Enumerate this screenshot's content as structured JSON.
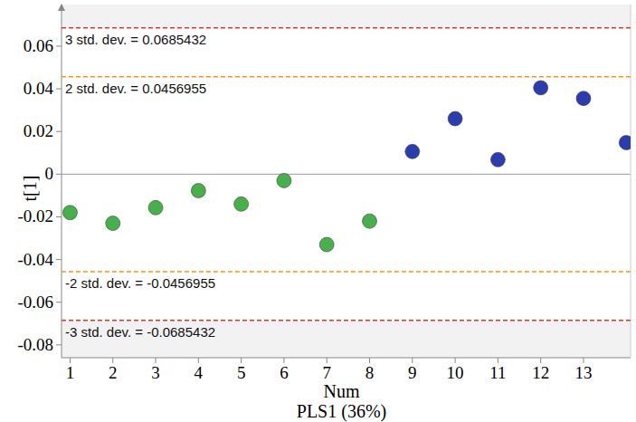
{
  "chart_data": {
    "type": "scatter",
    "subtitle": "PLS1 (36%)",
    "x_label": "Num",
    "y_label": "t[1]",
    "x": [
      1,
      2,
      3,
      4,
      5,
      6,
      7,
      8,
      9,
      10,
      11,
      12,
      13,
      14
    ],
    "values": [
      -0.018,
      -0.023,
      -0.0157,
      -0.0077,
      -0.014,
      -0.003,
      -0.033,
      -0.022,
      0.0106,
      0.026,
      0.0068,
      0.0405,
      0.0355,
      0.0148
    ],
    "colors": [
      "#46b04a",
      "#46b04a",
      "#46b04a",
      "#46b04a",
      "#46b04a",
      "#46b04a",
      "#46b04a",
      "#46b04a",
      "#2b3cae",
      "#2b3cae",
      "#2b3cae",
      "#2b3cae",
      "#2b3cae",
      "#2b3cae"
    ],
    "marker": "circle",
    "xlim": [
      0.8,
      14.1
    ],
    "xticks": [
      1,
      2,
      3,
      4,
      5,
      6,
      7,
      8,
      9,
      10,
      11,
      12,
      13
    ],
    "ylim": [
      -0.086,
      0.0795
    ],
    "yticks": [
      -0.08,
      -0.06,
      -0.04,
      -0.02,
      0,
      0.02,
      0.04,
      0.06
    ],
    "grid": false,
    "annotations": [
      {
        "label": "3 std. dev. = 0.0685432",
        "y": 0.0685432,
        "color": "#e8342c",
        "line_style": "dashed"
      },
      {
        "label": "2 std. dev. = 0.0456955",
        "y": 0.0456955,
        "color": "#f39a1e",
        "line_style": "dashed"
      },
      {
        "label": "-2 std. dev. = -0.0456955",
        "y": -0.0456955,
        "color": "#f39a1e",
        "line_style": "dashed"
      },
      {
        "label": "-3 std. dev. = -0.0685432",
        "y": -0.0685432,
        "color": "#e8342c",
        "line_style": "dashed"
      }
    ]
  }
}
